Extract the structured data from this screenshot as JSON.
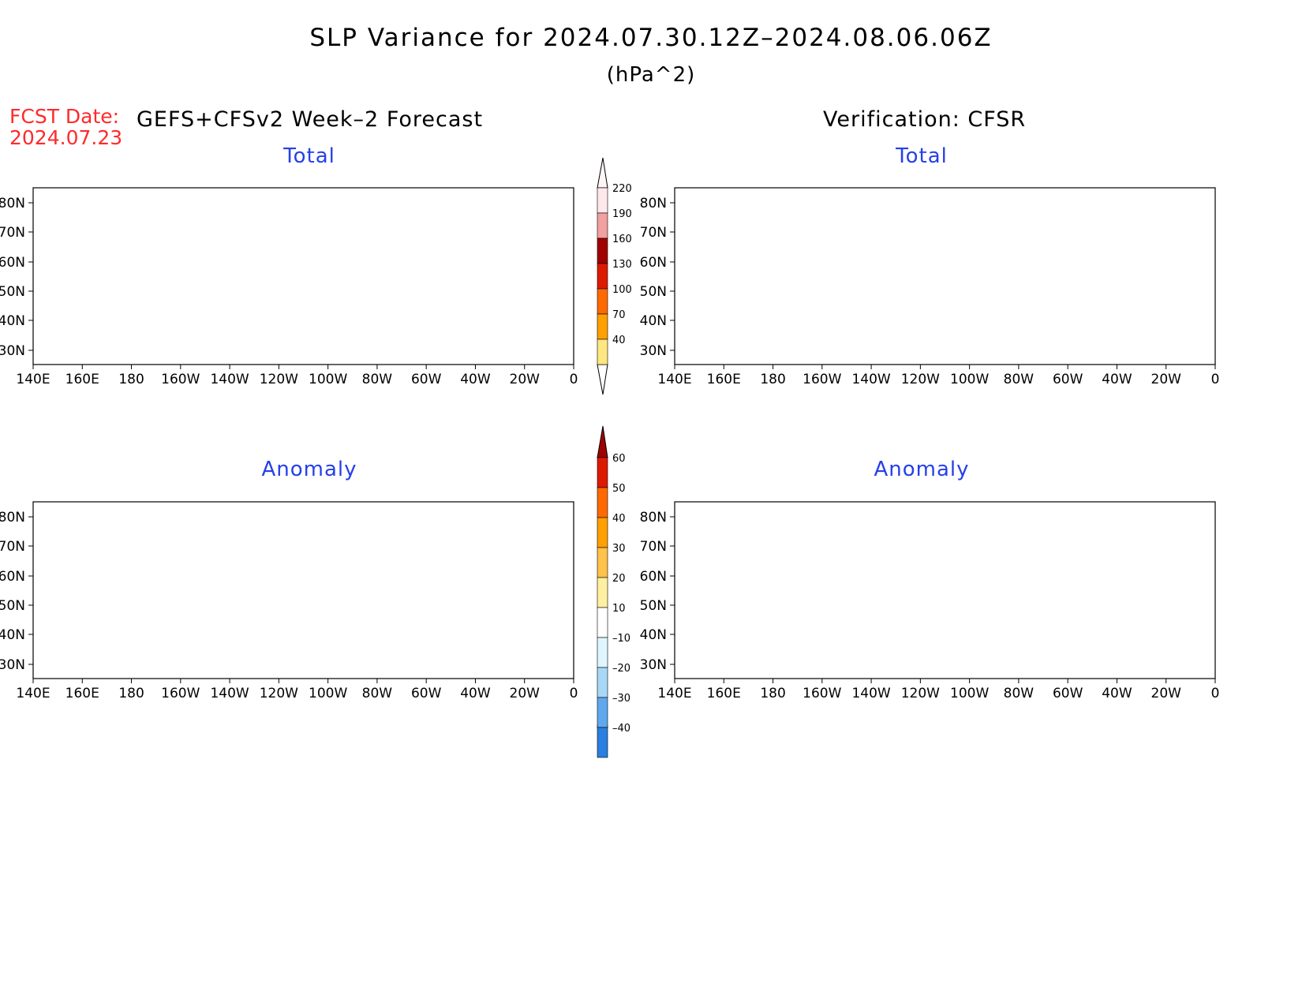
{
  "title": "SLP Variance for 2024.07.30.12Z–2024.08.06.06Z",
  "units": "(hPa^2)",
  "forecast_date_label": "FCST Date:",
  "forecast_date": "2024.07.23",
  "left_header": "GEFS+CFSv2 Week–2 Forecast",
  "right_header": "Verification: CFSR",
  "panel_titles": {
    "forecast_total": "Total",
    "verification_total": "Total",
    "forecast_anomaly": "Anomaly",
    "verification_anomaly": "Anomaly"
  },
  "map_axes": {
    "lat_labels": [
      "80N",
      "70N",
      "60N",
      "50N",
      "40N",
      "30N"
    ],
    "lon_labels": [
      "140E",
      "160E",
      "180",
      "160W",
      "140W",
      "120W",
      "100W",
      "80W",
      "60W",
      "40W",
      "20W",
      "0"
    ]
  },
  "total_colorbar": {
    "labels": [
      "220",
      "190",
      "160",
      "130",
      "100",
      "70",
      "40"
    ],
    "colors": [
      "#ffe8ec",
      "#f2a0a0",
      "#a00000",
      "#dd1a00",
      "#ff6a00",
      "#ffa000",
      "#ffe680"
    ]
  },
  "anomaly_colorbar": {
    "labels": [
      "60",
      "50",
      "40",
      "30",
      "20",
      "10",
      "–10",
      "–20",
      "–30",
      "–40"
    ],
    "colors": [
      "#a00000",
      "#dd1a00",
      "#ff6a00",
      "#ffa000",
      "#ffc24a",
      "#fff0a0",
      "#ffffff",
      "#dff6ff",
      "#a8d8f5",
      "#5fa8ee",
      "#2a7fe0",
      "#1560d8"
    ]
  },
  "legend_colors": {
    "light_yellow": "#ffe680",
    "orange": "#ffa000",
    "dark_orange": "#ff6a00",
    "red": "#dd1a00",
    "dark_red": "#a00000",
    "light_blue": "#dff6ff",
    "blue": "#a8d8f5",
    "deep_blue": "#2a7fe0"
  }
}
